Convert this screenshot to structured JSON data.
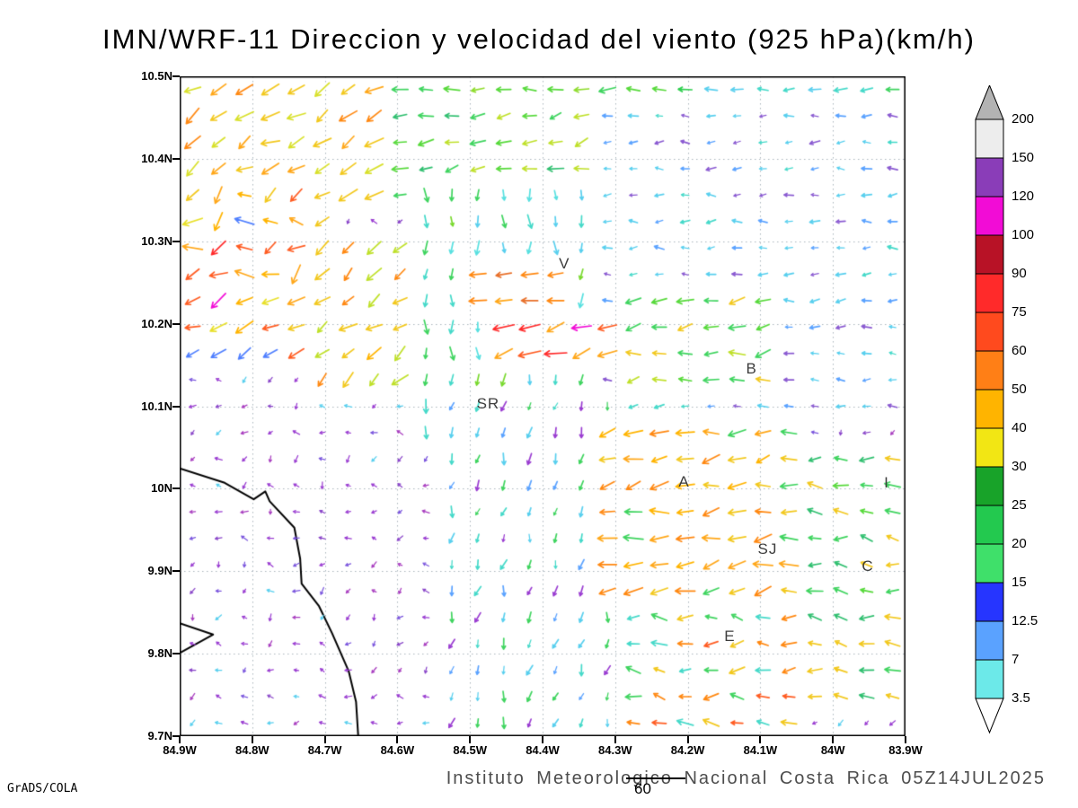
{
  "chart_data": {
    "type": "vector_field_map",
    "title": "IMN/WRF-11 Direccion y velocidad del viento (925 hPa)(km/h)",
    "axes": {
      "x_ticks": [
        "84.9W",
        "84.8W",
        "84.7W",
        "84.6W",
        "84.5W",
        "84.4W",
        "84.3W",
        "84.2W",
        "84.1W",
        "84W",
        "83.9W"
      ],
      "y_ticks": [
        "10.5N",
        "10.4N",
        "10.3N",
        "10.2N",
        "10.1N",
        "10N",
        "9.9N",
        "9.8N",
        "9.7N"
      ],
      "x_range_deg_west": [
        84.9,
        83.9
      ],
      "y_range_deg_north": [
        9.7,
        10.5
      ],
      "grid": "dotted"
    },
    "colorbar": {
      "units": "km/h",
      "labels": [
        "200",
        "150",
        "120",
        "100",
        "90",
        "75",
        "60",
        "50",
        "40",
        "30",
        "25",
        "20",
        "15",
        "12.5",
        "7",
        "3.5"
      ],
      "segment_colors": [
        "#ededed",
        "#8a3db8",
        "#f20cd6",
        "#b81226",
        "#ff2a2a",
        "#ff4a1e",
        "#ff7f16",
        "#ffb400",
        "#f2e614",
        "#18a329",
        "#23c94f",
        "#3fe06a",
        "#2635ff",
        "#5aa2ff",
        "#6ce9e9"
      ],
      "triangle_top_color": "#b3b3b3",
      "triangle_bottom_color": "#ffffff"
    },
    "stations": [
      {
        "label": "V",
        "fx": 0.53,
        "fy": 0.284
      },
      {
        "label": "B",
        "fx": 0.788,
        "fy": 0.444
      },
      {
        "label": "SR",
        "fx": 0.425,
        "fy": 0.497
      },
      {
        "label": "A",
        "fx": 0.695,
        "fy": 0.615
      },
      {
        "label": "SJ",
        "fx": 0.81,
        "fy": 0.717
      },
      {
        "label": "C",
        "fx": 0.948,
        "fy": 0.743
      },
      {
        "label": "E",
        "fx": 0.758,
        "fy": 0.849
      },
      {
        "label": "I",
        "fx": 0.974,
        "fy": 0.617
      }
    ],
    "coastline": [
      [
        [
          0.0,
          0.594
        ],
        [
          0.062,
          0.616
        ],
        [
          0.102,
          0.641
        ],
        [
          0.118,
          0.629
        ],
        [
          0.124,
          0.644
        ],
        [
          0.158,
          0.684
        ],
        [
          0.166,
          0.731
        ],
        [
          0.168,
          0.769
        ],
        [
          0.192,
          0.803
        ],
        [
          0.21,
          0.844
        ],
        [
          0.233,
          0.902
        ],
        [
          0.243,
          0.948
        ],
        [
          0.246,
          1.0
        ]
      ],
      [
        [
          0.0,
          0.829
        ],
        [
          0.046,
          0.846
        ],
        [
          0.0,
          0.874
        ]
      ]
    ],
    "wind_field": {
      "nx": 28,
      "ny": 25,
      "seed": 1337,
      "regions": [
        {
          "name": "background-weak-purple",
          "box": [
            0,
            1,
            0,
            1
          ],
          "dir": [
            140,
            270
          ],
          "len": [
            5,
            8.5
          ],
          "colors": [
            "#9a3dd1",
            "#8a46c9",
            "#a83dbf",
            "#9a3dd1",
            "#7a55dd",
            "#9a3dd1",
            "#58cfee"
          ]
        },
        {
          "name": "top-band-easterly",
          "box": [
            0,
            1,
            0,
            0.075
          ],
          "dir": [
            168,
            198
          ],
          "len": [
            14,
            19
          ],
          "colors": [
            "#2fcf4f",
            "#57d93b",
            "#8fdc2e",
            "#3fd45f",
            "#e8e02a"
          ]
        },
        {
          "name": "top-right-cyan",
          "box": [
            0.72,
            1,
            0,
            0.075
          ],
          "dir": [
            168,
            198
          ],
          "len": [
            11,
            15
          ],
          "colors": [
            "#45d9c9",
            "#58cfee",
            "#3fd45f"
          ]
        },
        {
          "name": "top-left-strong",
          "box": [
            0,
            0.28,
            0.02,
            0.2
          ],
          "dir": [
            188,
            232
          ],
          "len": [
            17,
            25
          ],
          "colors": [
            "#f2c81e",
            "#ffa719",
            "#ff8811",
            "#d8e02a"
          ]
        },
        {
          "name": "upper-left-mixed",
          "box": [
            0,
            0.22,
            0.18,
            0.42
          ],
          "dir": [
            150,
            255
          ],
          "len": [
            14,
            23
          ],
          "colors": [
            "#ffa719",
            "#f2c81e",
            "#ff5c22",
            "#4f7fff",
            "#ffb400",
            "#e8e02a"
          ]
        },
        {
          "name": "left-red-cluster",
          "box": [
            0,
            0.075,
            0.23,
            0.34
          ],
          "dir": [
            160,
            230
          ],
          "len": [
            16,
            24
          ],
          "colors": [
            "#ff2a2a",
            "#f20cd6",
            "#ff5c22",
            "#ffa719"
          ]
        },
        {
          "name": "mid-left-yellow",
          "box": [
            0.18,
            0.36,
            0.22,
            0.48
          ],
          "dir": [
            195,
            240
          ],
          "len": [
            15,
            21
          ],
          "colors": [
            "#f2c81e",
            "#ffb400",
            "#ff8811",
            "#bfe02a"
          ]
        },
        {
          "name": "upper-mid-green",
          "box": [
            0.28,
            0.62,
            0.05,
            0.2
          ],
          "dir": [
            172,
            215
          ],
          "len": [
            13,
            18
          ],
          "colors": [
            "#3fd45f",
            "#57d93b",
            "#2fbf6f",
            "#bfe02a"
          ]
        },
        {
          "name": "center-north-flow",
          "box": [
            0.33,
            0.57,
            0.18,
            0.56
          ],
          "dir": [
            252,
            288
          ],
          "len": [
            10,
            16
          ],
          "colors": [
            "#45d9c9",
            "#3fd45f",
            "#58e0e0",
            "#79d92e",
            "#58cfee"
          ]
        },
        {
          "name": "right-weak-cyan",
          "box": [
            0.57,
            1,
            0.05,
            0.5
          ],
          "dir": [
            162,
            200
          ],
          "len": [
            7,
            11.5
          ],
          "colors": [
            "#58cfee",
            "#5aa2ff",
            "#45d9c9",
            "#8a5ad1",
            "#58cfee"
          ]
        },
        {
          "name": "v-area-orange",
          "box": [
            0.4,
            0.55,
            0.27,
            0.35
          ],
          "dir": [
            176,
            196
          ],
          "len": [
            16,
            20
          ],
          "colors": [
            "#ff8811",
            "#ffa719",
            "#e8702a"
          ]
        },
        {
          "name": "central-red-cluster",
          "box": [
            0.43,
            0.6,
            0.37,
            0.45
          ],
          "dir": [
            172,
            212
          ],
          "len": [
            19,
            26
          ],
          "colors": [
            "#ff2a2a",
            "#ff5c22",
            "#f20cd6",
            "#ffa719"
          ]
        },
        {
          "name": "b-area-yellow-green",
          "box": [
            0.62,
            0.83,
            0.32,
            0.48
          ],
          "dir": [
            168,
            208
          ],
          "len": [
            14,
            19
          ],
          "colors": [
            "#bfe02a",
            "#3fd45f",
            "#f2c81e",
            "#57d93b"
          ]
        },
        {
          "name": "center-south-weak",
          "box": [
            0.34,
            0.62,
            0.5,
            1
          ],
          "dir": [
            232,
            282
          ],
          "len": [
            8,
            13
          ],
          "colors": [
            "#45d9c9",
            "#58cfee",
            "#3fd45f",
            "#5aa2ff",
            "#9a3dd1"
          ]
        },
        {
          "name": "lower-right-orange",
          "box": [
            0.58,
            0.87,
            0.53,
            0.78
          ],
          "dir": [
            168,
            212
          ],
          "len": [
            16,
            22
          ],
          "colors": [
            "#ffa719",
            "#ff8811",
            "#f2c81e",
            "#3fd45f",
            "#ffb400"
          ]
        },
        {
          "name": "right-edge-green",
          "box": [
            0.87,
            1,
            0.55,
            0.97
          ],
          "dir": [
            152,
            198
          ],
          "len": [
            13,
            18
          ],
          "colors": [
            "#3fd45f",
            "#2fbf6f",
            "#57d93b",
            "#f2c81e"
          ]
        },
        {
          "name": "bottom-mid-mixed",
          "box": [
            0.62,
            0.87,
            0.8,
            1
          ],
          "dir": [
            150,
            212
          ],
          "len": [
            12,
            19
          ],
          "colors": [
            "#ff8811",
            "#3fd45f",
            "#f2c81e",
            "#45d9c9",
            "#ff5c22"
          ]
        }
      ]
    },
    "footer": {
      "institute_line": "Instituto Meteorologico Nacional Costa Rica 05Z14JUL2025",
      "contour_label": "60",
      "grads_credit": "GrADS/COLA"
    }
  }
}
